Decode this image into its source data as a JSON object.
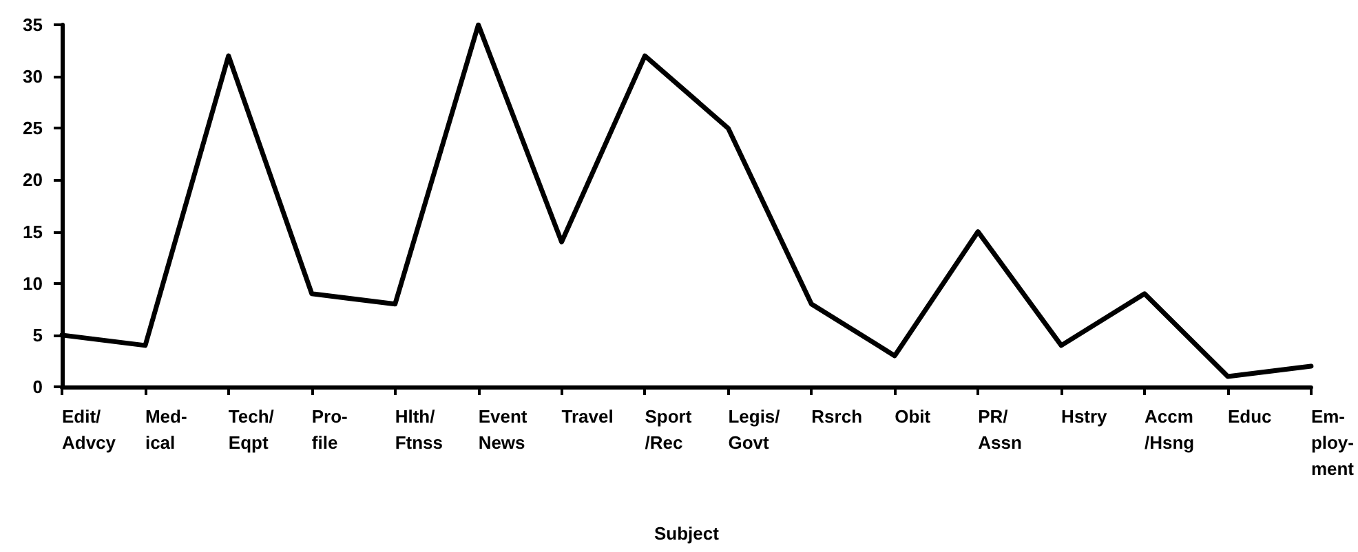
{
  "chart_data": {
    "type": "line",
    "xlabel": "Subject",
    "categories": [
      "Edit/\nAdvcy",
      "Med-\nical",
      "Tech/\nEqpt",
      "Pro-\nfile",
      "Hlth/\nFtnss",
      "Event\nNews",
      "Travel",
      "Sport\n/Rec",
      "Legis/\nGovt",
      "Rsrch",
      "Obit",
      "PR/\nAssn",
      "Hstry",
      "Accm\n/Hsng",
      "Educ",
      "Em-\nploy-\nment"
    ],
    "series": [
      {
        "color": "#000000",
        "values": [
          5,
          4,
          32,
          9,
          8,
          35,
          14,
          32,
          25,
          8,
          3,
          15,
          4,
          9,
          1,
          2
        ]
      }
    ],
    "ylim": [
      0,
      35
    ],
    "yticks": [
      0,
      5,
      10,
      15,
      20,
      25,
      30,
      35
    ],
    "grid": false,
    "marker": "none",
    "line_style": "solid"
  }
}
